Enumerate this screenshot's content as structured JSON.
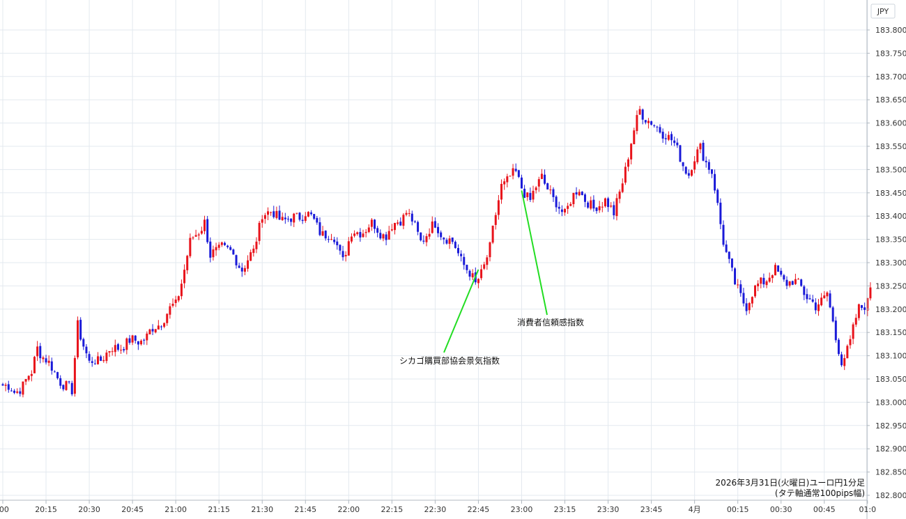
{
  "chart_data": {
    "type": "candlestick",
    "currency_label": "JPY",
    "caption_line1": "2026年3月31日(火曜日)ユーロ円1分足",
    "caption_line2": "(タテ軸通常100pips幅)",
    "ylim": [
      182.8,
      183.8
    ],
    "y_ticks": [
      "183.800",
      "183.750",
      "183.700",
      "183.650",
      "183.600",
      "183.550",
      "183.500",
      "183.450",
      "183.400",
      "183.350",
      "183.300",
      "183.250",
      "183.200",
      "183.150",
      "183.100",
      "183.050",
      "183.000",
      "182.950",
      "182.900",
      "182.850",
      "182.800"
    ],
    "x_ticks": [
      ":00",
      "20:15",
      "20:30",
      "20:45",
      "21:00",
      "21:15",
      "21:30",
      "21:45",
      "22:00",
      "22:15",
      "22:30",
      "22:45",
      "23:00",
      "23:15",
      "23:30",
      "23:45",
      "4月",
      "00:15",
      "00:30",
      "00:45",
      "01:0"
    ],
    "x_range_minutes": [
      1200,
      1501
    ],
    "grid": true,
    "colors": {
      "up": "#e8131b",
      "down": "#1a1ad8",
      "grid": "#e3e9ef",
      "annotation_line": "#22dd22"
    },
    "waypoints": [
      {
        "t": 1200,
        "p": 183.04
      },
      {
        "t": 1204,
        "p": 183.02
      },
      {
        "t": 1210,
        "p": 183.06
      },
      {
        "t": 1212,
        "p": 183.12
      },
      {
        "t": 1217,
        "p": 183.07
      },
      {
        "t": 1224,
        "p": 183.02
      },
      {
        "t": 1226,
        "p": 183.17
      },
      {
        "t": 1230,
        "p": 183.08
      },
      {
        "t": 1240,
        "p": 183.12
      },
      {
        "t": 1250,
        "p": 183.14
      },
      {
        "t": 1254,
        "p": 183.17
      },
      {
        "t": 1260,
        "p": 183.21
      },
      {
        "t": 1265,
        "p": 183.34
      },
      {
        "t": 1270,
        "p": 183.39
      },
      {
        "t": 1272,
        "p": 183.31
      },
      {
        "t": 1276,
        "p": 183.34
      },
      {
        "t": 1283,
        "p": 183.29
      },
      {
        "t": 1287,
        "p": 183.32
      },
      {
        "t": 1290,
        "p": 183.41
      },
      {
        "t": 1300,
        "p": 183.39
      },
      {
        "t": 1305,
        "p": 183.41
      },
      {
        "t": 1310,
        "p": 183.37
      },
      {
        "t": 1315,
        "p": 183.35
      },
      {
        "t": 1318,
        "p": 183.31
      },
      {
        "t": 1321,
        "p": 183.36
      },
      {
        "t": 1328,
        "p": 183.38
      },
      {
        "t": 1333,
        "p": 183.36
      },
      {
        "t": 1340,
        "p": 183.41
      },
      {
        "t": 1345,
        "p": 183.35
      },
      {
        "t": 1350,
        "p": 183.38
      },
      {
        "t": 1356,
        "p": 183.34
      },
      {
        "t": 1360,
        "p": 183.3
      },
      {
        "t": 1364,
        "p": 183.25
      },
      {
        "t": 1369,
        "p": 183.33
      },
      {
        "t": 1373,
        "p": 183.47
      },
      {
        "t": 1378,
        "p": 183.49
      },
      {
        "t": 1383,
        "p": 183.43
      },
      {
        "t": 1387,
        "p": 183.49
      },
      {
        "t": 1391,
        "p": 183.43
      },
      {
        "t": 1395,
        "p": 183.41
      },
      {
        "t": 1400,
        "p": 183.46
      },
      {
        "t": 1405,
        "p": 183.41
      },
      {
        "t": 1409,
        "p": 183.44
      },
      {
        "t": 1412,
        "p": 183.4
      },
      {
        "t": 1417,
        "p": 183.53
      },
      {
        "t": 1421,
        "p": 183.63
      },
      {
        "t": 1426,
        "p": 183.59
      },
      {
        "t": 1430,
        "p": 183.58
      },
      {
        "t": 1434,
        "p": 183.54
      },
      {
        "t": 1438,
        "p": 183.49
      },
      {
        "t": 1442,
        "p": 183.55
      },
      {
        "t": 1446,
        "p": 183.49
      },
      {
        "t": 1450,
        "p": 183.35
      },
      {
        "t": 1454,
        "p": 183.25
      },
      {
        "t": 1458,
        "p": 183.21
      },
      {
        "t": 1463,
        "p": 183.26
      },
      {
        "t": 1468,
        "p": 183.28
      },
      {
        "t": 1472,
        "p": 183.26
      },
      {
        "t": 1477,
        "p": 183.25
      },
      {
        "t": 1482,
        "p": 183.2
      },
      {
        "t": 1486,
        "p": 183.24
      },
      {
        "t": 1489,
        "p": 183.13
      },
      {
        "t": 1491,
        "p": 183.09
      },
      {
        "t": 1494,
        "p": 183.13
      },
      {
        "t": 1497,
        "p": 183.2
      },
      {
        "t": 1500,
        "p": 183.22
      },
      {
        "t": 1501,
        "p": 183.25
      }
    ],
    "annotations": [
      {
        "label": "シカゴ購買部協会景気指数",
        "time": 1365,
        "price": 183.285
      },
      {
        "label": "消費者信頼感指数",
        "time": 1380,
        "price": 183.455
      }
    ]
  }
}
